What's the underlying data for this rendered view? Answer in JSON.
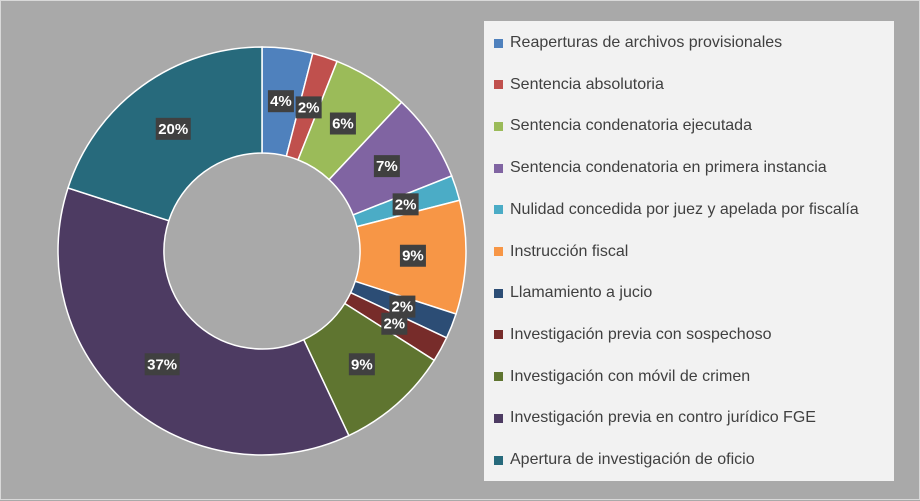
{
  "chart_data": {
    "type": "pie",
    "donut": true,
    "legend_position": "right",
    "categories": [
      "Reaperturas de archivos provisionales",
      "Sentencia absolutoria",
      "Sentencia condenatoria ejecutada",
      "Sentencia condenatoria en primera instancia",
      "Nulidad concedida por juez y apelada por fiscalía",
      "Instrucción fiscal",
      "Llamamiento a jucio",
      "Investigación previa con sospechoso",
      "Investigación con móvil de crimen",
      "Investigación previa en contro jurídico FGE",
      "Apertura de investigación de oficio"
    ],
    "values": [
      4,
      2,
      6,
      7,
      2,
      9,
      2,
      2,
      9,
      37,
      20
    ],
    "labels": [
      "4%",
      "2%",
      "6%",
      "7%",
      "2%",
      "9%",
      "2%",
      "2%",
      "9%",
      "37%",
      "20%"
    ],
    "colors": [
      "#4f81bd",
      "#c0504d",
      "#9bbb59",
      "#8064a2",
      "#4bacc6",
      "#f79646",
      "#2c4d75",
      "#772c2a",
      "#5f7530",
      "#4d3b62",
      "#276a7c"
    ]
  }
}
